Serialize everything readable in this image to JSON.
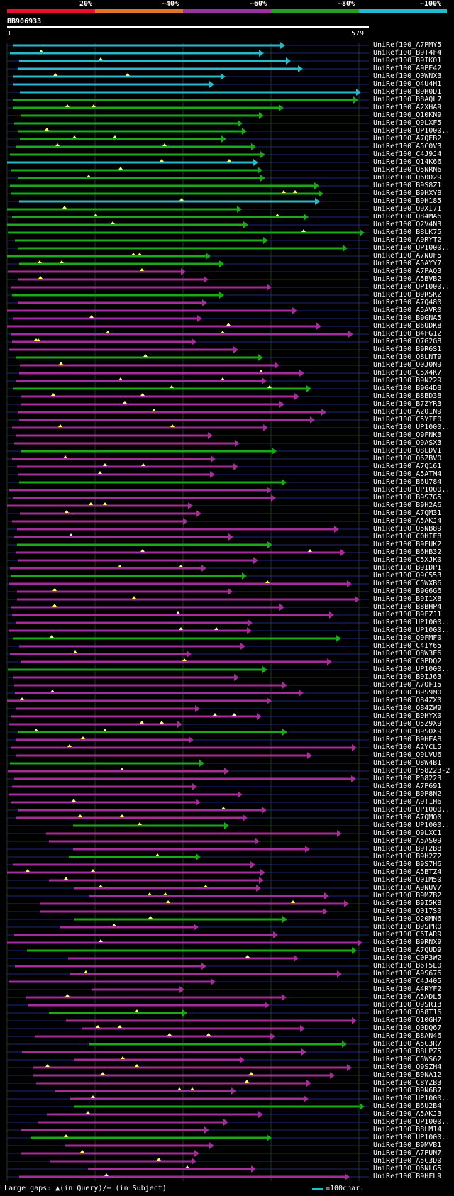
{
  "header": {
    "ticks": [
      "20%",
      "~40%",
      "~60%",
      "~80%",
      "~100%"
    ],
    "colors": [
      "#e8102c",
      "#e8731a",
      "#a32d9a",
      "#1aa81a",
      "#2ab8c8"
    ],
    "query_name": "BB906933",
    "ruler_start": "1",
    "ruler_end": "579"
  },
  "hits": [
    "UniRef100_A7PMY5",
    "UniRef100_B9T4F4",
    "UniRef100_B9IK01",
    "UniRef100_A9PE42",
    "UniRef100_Q0WNX3",
    "UniRef100_Q4U4H1",
    "UniRef100_B9H0D1",
    "UniRef100_B8AQL7",
    "UniRef100_A2XHA9",
    "UniRef100_Q10KN9",
    "UniRef100_Q9LXF5",
    "UniRef100_UP1000..",
    "UniRef100_A7QEB2",
    "UniRef100_A5C0V3",
    "UniRef100_C4J9J4",
    "UniRef100_Q14K66",
    "UniRef100_Q5NRN6",
    "UniRef100_Q60D29",
    "UniRef100_B9S8Z1",
    "UniRef100_B9HXY8",
    "UniRef100_B9H185",
    "UniRef100_Q9XI71",
    "UniRef100_Q84MA6",
    "UniRef100_Q2V4N3",
    "UniRef100_B8LK75",
    "UniRef100_A9RYT2",
    "UniRef100_UP1000..",
    "UniRef100_A7NUF5",
    "UniRef100_A5AYY7",
    "UniRef100_A7PAQ3",
    "UniRef100_A5BVB2",
    "UniRef100_UP1000..",
    "UniRef100_B9RSK2",
    "UniRef100_A7Q480",
    "UniRef100_A5AVR0",
    "UniRef100_B9GNA5",
    "UniRef100_B6UDK8",
    "UniRef100_B4FG12",
    "UniRef100_Q7G2G8",
    "UniRef100_B9R6S1",
    "UniRef100_Q8LNT9",
    "UniRef100_Q0J0N9",
    "UniRef100_C5X4K7",
    "UniRef100_B9N229",
    "UniRef100_B9G4D8",
    "UniRef100_B8BD38",
    "UniRef100_B7ZYR3",
    "UniRef100_A201N9",
    "UniRef100_C5YIF0",
    "UniRef100_UP1000..",
    "UniRef100_Q9FNK3",
    "UniRef100_Q9ASX3",
    "UniRef100_Q8LDV1",
    "UniRef100_Q6ZBV0",
    "UniRef100_A7Q161",
    "UniRef100_A5ATM4",
    "UniRef100_B6U784",
    "UniRef100_UP1000..",
    "UniRef100_B9S7G5",
    "UniRef100_B9H2A6",
    "UniRef100_A7QM31",
    "UniRef100_A5AKJ4",
    "UniRef100_Q5NB89",
    "UniRef100_C0HIF8",
    "UniRef100_B9EUK2",
    "UniRef100_B6HB32",
    "UniRef100_C5XJK0",
    "UniRef100_B9IDP1",
    "UniRef100_Q9C553",
    "UniRef100_C5WXB6",
    "UniRef100_B9G6G6",
    "UniRef100_B9I1X8",
    "UniRef100_B8BHP4",
    "UniRef100_B9FZJ1",
    "UniRef100_UP1000..",
    "UniRef100_UP1000..",
    "UniRef100_Q9FMF0",
    "UniRef100_C4IY65",
    "UniRef100_Q8W3E6",
    "UniRef100_C0PDQ2",
    "UniRef100_UP1000..",
    "UniRef100_B9IJ63",
    "UniRef100_A7QF15",
    "UniRef100_B9S9M0",
    "UniRef100_Q84ZX0",
    "UniRef100_Q84ZW9",
    "UniRef100_B9HYX0",
    "UniRef100_Q5Z9X9",
    "UniRef100_B9SOX9",
    "UniRef100_B9HEA8",
    "UniRef100_A2YCL5",
    "UniRef100_Q9LVU6",
    "UniRef100_Q8W4B1",
    "UniRef100_P58223-2",
    "UniRef100_P58223",
    "UniRef100_A7P691",
    "UniRef100_B9P8N2",
    "UniRef100_A9T1H6",
    "UniRef100_UP1000..",
    "UniRef100_A7QMQ0",
    "UniRef100_UP1000..",
    "UniRef100_Q9LXC1",
    "UniRef100_A5AS09",
    "UniRef100_B9T2B8",
    "UniRef100_B9H2Z2",
    "UniRef100_B9S7H6",
    "UniRef100_A5BTZ4",
    "UniRef100_Q0IM50",
    "UniRef100_A9NUV7",
    "UniRef100_B9MZB2",
    "UniRef100_B9I5K8",
    "UniRef100_Q017S0",
    "UniRef100_Q20MN6",
    "UniRef100_B9SPR0",
    "UniRef100_C6TAR9",
    "UniRef100_B9RNX9",
    "UniRef100_A7QUD9",
    "UniRef100_C0P3W2",
    "UniRef100_B6T5L0",
    "UniRef100_A9S676",
    "UniRef100_C4J405",
    "UniRef100_A4RYF2",
    "UniRef100_A5ADL5",
    "UniRef100_Q9SR13",
    "UniRef100_Q58T16",
    "UniRef100_Q10GH7",
    "UniRef100_Q0DQ67",
    "UniRef100_B8AN46",
    "UniRef100_A5C3R7",
    "UniRef100_B8LPZ5",
    "UniRef100_C5WS62",
    "UniRef100_Q9SZH4",
    "UniRef100_B9NA12",
    "UniRef100_C8YZB3",
    "UniRef100_B9N6B7",
    "UniRef100_UP1000..",
    "UniRef100_B6U2B4",
    "UniRef100_A5AKJ3",
    "UniRef100_UP1000..",
    "UniRef100_B8LM14",
    "UniRef100_UP1000..",
    "UniRef100_B9MVB1",
    "UniRef100_A7PUN7",
    "UniRef100_A5C3D0",
    "UniRef100_Q6NLG5",
    "UniRef100_B9HFL9"
  ],
  "legend": {
    "large_gaps": "Large gaps: ▲(in Query)/− (in Subject)",
    "scale": "=100char."
  }
}
